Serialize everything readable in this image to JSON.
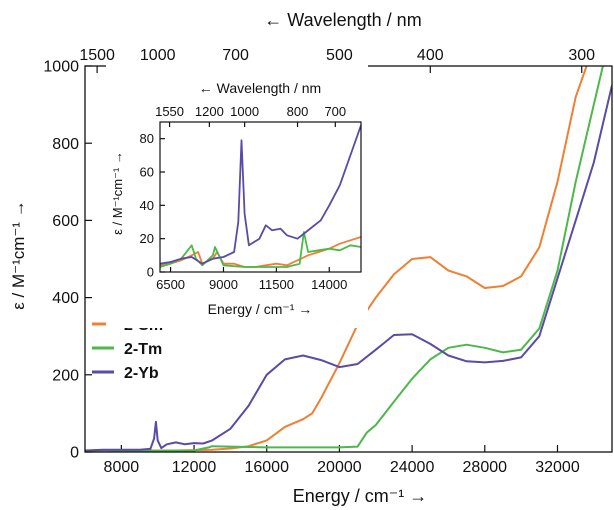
{
  "chart_data": [
    {
      "type": "line",
      "xlabel": "Energy / cm⁻¹ →",
      "ylabel": "ε / M⁻¹cm⁻¹ →",
      "top_axis_label": "← Wavelength / nm",
      "xlim": [
        6000,
        35000
      ],
      "ylim": [
        0,
        1000
      ],
      "x_ticks": [
        8000,
        12000,
        16000,
        20000,
        24000,
        28000,
        32000
      ],
      "x_tick_labels": [
        "8000",
        "12000",
        "16000",
        "20000",
        "24000",
        "28000",
        "32000"
      ],
      "y_ticks": [
        0,
        200,
        400,
        600,
        800,
        1000
      ],
      "y_tick_labels": [
        "0",
        "200",
        "400",
        "600",
        "800",
        "1000"
      ],
      "top_ticks_nm": [
        1500,
        1000,
        700,
        500,
        400,
        300
      ],
      "top_tick_labels": [
        "1500",
        "1000",
        "700",
        "500",
        "400",
        "300"
      ],
      "legend_position": "left",
      "series": [
        {
          "name": "2-Sm",
          "color": "#F07F32",
          "points": [
            [
              6000,
              3
            ],
            [
              7000,
              5
            ],
            [
              8000,
              3
            ],
            [
              9000,
              4
            ],
            [
              10000,
              4
            ],
            [
              11000,
              4
            ],
            [
              12000,
              5
            ],
            [
              13000,
              6
            ],
            [
              14000,
              9
            ],
            [
              15000,
              15
            ],
            [
              16000,
              30
            ],
            [
              17000,
              65
            ],
            [
              18000,
              85
            ],
            [
              18500,
              100
            ],
            [
              19000,
              140
            ],
            [
              20000,
              230
            ],
            [
              21000,
              330
            ],
            [
              22000,
              400
            ],
            [
              23000,
              460
            ],
            [
              24000,
              500
            ],
            [
              25000,
              505
            ],
            [
              26000,
              470
            ],
            [
              27000,
              455
            ],
            [
              28000,
              425
            ],
            [
              29000,
              430
            ],
            [
              30000,
              455
            ],
            [
              31000,
              530
            ],
            [
              32000,
              700
            ],
            [
              33000,
              920
            ],
            [
              33600,
              1000
            ]
          ]
        },
        {
          "name": "2-Tm",
          "color": "#4DB84A",
          "points": [
            [
              6000,
              3
            ],
            [
              7000,
              5
            ],
            [
              8000,
              3
            ],
            [
              9000,
              4
            ],
            [
              10000,
              3
            ],
            [
              11000,
              4
            ],
            [
              12000,
              4
            ],
            [
              12800,
              12
            ],
            [
              13000,
              15
            ],
            [
              14000,
              14
            ],
            [
              15000,
              13
            ],
            [
              16000,
              12
            ],
            [
              17000,
              12
            ],
            [
              18000,
              12
            ],
            [
              19000,
              12
            ],
            [
              20000,
              12
            ],
            [
              21000,
              14
            ],
            [
              21500,
              50
            ],
            [
              22000,
              70
            ],
            [
              23000,
              130
            ],
            [
              24000,
              190
            ],
            [
              25000,
              240
            ],
            [
              26000,
              270
            ],
            [
              27000,
              278
            ],
            [
              28000,
              270
            ],
            [
              29000,
              258
            ],
            [
              30000,
              265
            ],
            [
              31000,
              320
            ],
            [
              32000,
              470
            ],
            [
              33000,
              700
            ],
            [
              34000,
              900
            ],
            [
              34500,
              1000
            ]
          ]
        },
        {
          "name": "2-Yb",
          "color": "#5B4AA6",
          "points": [
            [
              6000,
              4
            ],
            [
              7000,
              6
            ],
            [
              8000,
              6
            ],
            [
              9000,
              6
            ],
            [
              9600,
              8
            ],
            [
              9800,
              35
            ],
            [
              9900,
              78
            ],
            [
              10000,
              30
            ],
            [
              10200,
              10
            ],
            [
              10500,
              20
            ],
            [
              11000,
              25
            ],
            [
              11500,
              20
            ],
            [
              12000,
              23
            ],
            [
              12500,
              22
            ],
            [
              13000,
              30
            ],
            [
              14000,
              60
            ],
            [
              15000,
              120
            ],
            [
              16000,
              200
            ],
            [
              17000,
              240
            ],
            [
              18000,
              250
            ],
            [
              19000,
              238
            ],
            [
              20000,
              220
            ],
            [
              21000,
              228
            ],
            [
              22000,
              265
            ],
            [
              23000,
              303
            ],
            [
              24000,
              305
            ],
            [
              25000,
              280
            ],
            [
              26000,
              250
            ],
            [
              27000,
              235
            ],
            [
              28000,
              232
            ],
            [
              29000,
              236
            ],
            [
              30000,
              245
            ],
            [
              31000,
              300
            ],
            [
              32000,
              450
            ],
            [
              33000,
              600
            ],
            [
              34000,
              750
            ],
            [
              35000,
              950
            ]
          ]
        }
      ]
    },
    {
      "type": "line",
      "xlabel": "Energy / cm⁻¹ →",
      "ylabel": "ε / M⁻¹cm⁻¹ →",
      "top_axis_label": "← Wavelength / nm",
      "xlim": [
        6000,
        15500
      ],
      "ylim": [
        0,
        90
      ],
      "x_ticks": [
        6500,
        9000,
        11500,
        14000
      ],
      "x_tick_labels": [
        "6500",
        "9000",
        "11500",
        "14000"
      ],
      "y_ticks": [
        0,
        20,
        40,
        60,
        80
      ],
      "y_tick_labels": [
        "0",
        "20",
        "40",
        "60",
        "80"
      ],
      "top_ticks_nm": [
        1550,
        1200,
        1000,
        800,
        700
      ],
      "top_tick_labels": [
        "1550",
        "1200",
        "1000",
        "800",
        "700"
      ],
      "series": [
        {
          "name": "2-Sm",
          "color": "#F07F32",
          "points": [
            [
              6000,
              4
            ],
            [
              6500,
              5
            ],
            [
              7000,
              7
            ],
            [
              7500,
              10
            ],
            [
              7800,
              12
            ],
            [
              8000,
              5
            ],
            [
              8500,
              8
            ],
            [
              8700,
              12
            ],
            [
              9000,
              5
            ],
            [
              9500,
              5
            ],
            [
              10000,
              3
            ],
            [
              10500,
              3
            ],
            [
              11000,
              4
            ],
            [
              11500,
              5
            ],
            [
              12000,
              4
            ],
            [
              12500,
              7
            ],
            [
              13000,
              10
            ],
            [
              13500,
              12
            ],
            [
              14000,
              14
            ],
            [
              14500,
              17
            ],
            [
              15000,
              19
            ],
            [
              15500,
              21
            ]
          ]
        },
        {
          "name": "2-Tm",
          "color": "#4DB84A",
          "points": [
            [
              6000,
              3
            ],
            [
              6500,
              5
            ],
            [
              7000,
              8
            ],
            [
              7500,
              16
            ],
            [
              7700,
              8
            ],
            [
              8000,
              4
            ],
            [
              8500,
              10
            ],
            [
              8600,
              15
            ],
            [
              9000,
              4
            ],
            [
              10000,
              3
            ],
            [
              11000,
              3
            ],
            [
              12000,
              3
            ],
            [
              12600,
              5
            ],
            [
              12800,
              24
            ],
            [
              13000,
              12
            ],
            [
              13500,
              13
            ],
            [
              14000,
              14
            ],
            [
              14500,
              13
            ],
            [
              15000,
              16
            ],
            [
              15500,
              15
            ]
          ]
        },
        {
          "name": "2-Yb",
          "color": "#5B4AA6",
          "points": [
            [
              6000,
              5
            ],
            [
              6500,
              6
            ],
            [
              7000,
              8
            ],
            [
              7500,
              9
            ],
            [
              8000,
              5
            ],
            [
              8500,
              8
            ],
            [
              9000,
              9
            ],
            [
              9500,
              12
            ],
            [
              9700,
              30
            ],
            [
              9850,
              79
            ],
            [
              10000,
              35
            ],
            [
              10200,
              16
            ],
            [
              10700,
              20
            ],
            [
              11000,
              28
            ],
            [
              11300,
              25
            ],
            [
              11700,
              26
            ],
            [
              12000,
              22
            ],
            [
              12500,
              20
            ],
            [
              12900,
              24
            ],
            [
              13200,
              27
            ],
            [
              13600,
              31
            ],
            [
              14000,
              40
            ],
            [
              14500,
              52
            ],
            [
              15000,
              70
            ],
            [
              15500,
              88
            ]
          ]
        }
      ]
    }
  ]
}
